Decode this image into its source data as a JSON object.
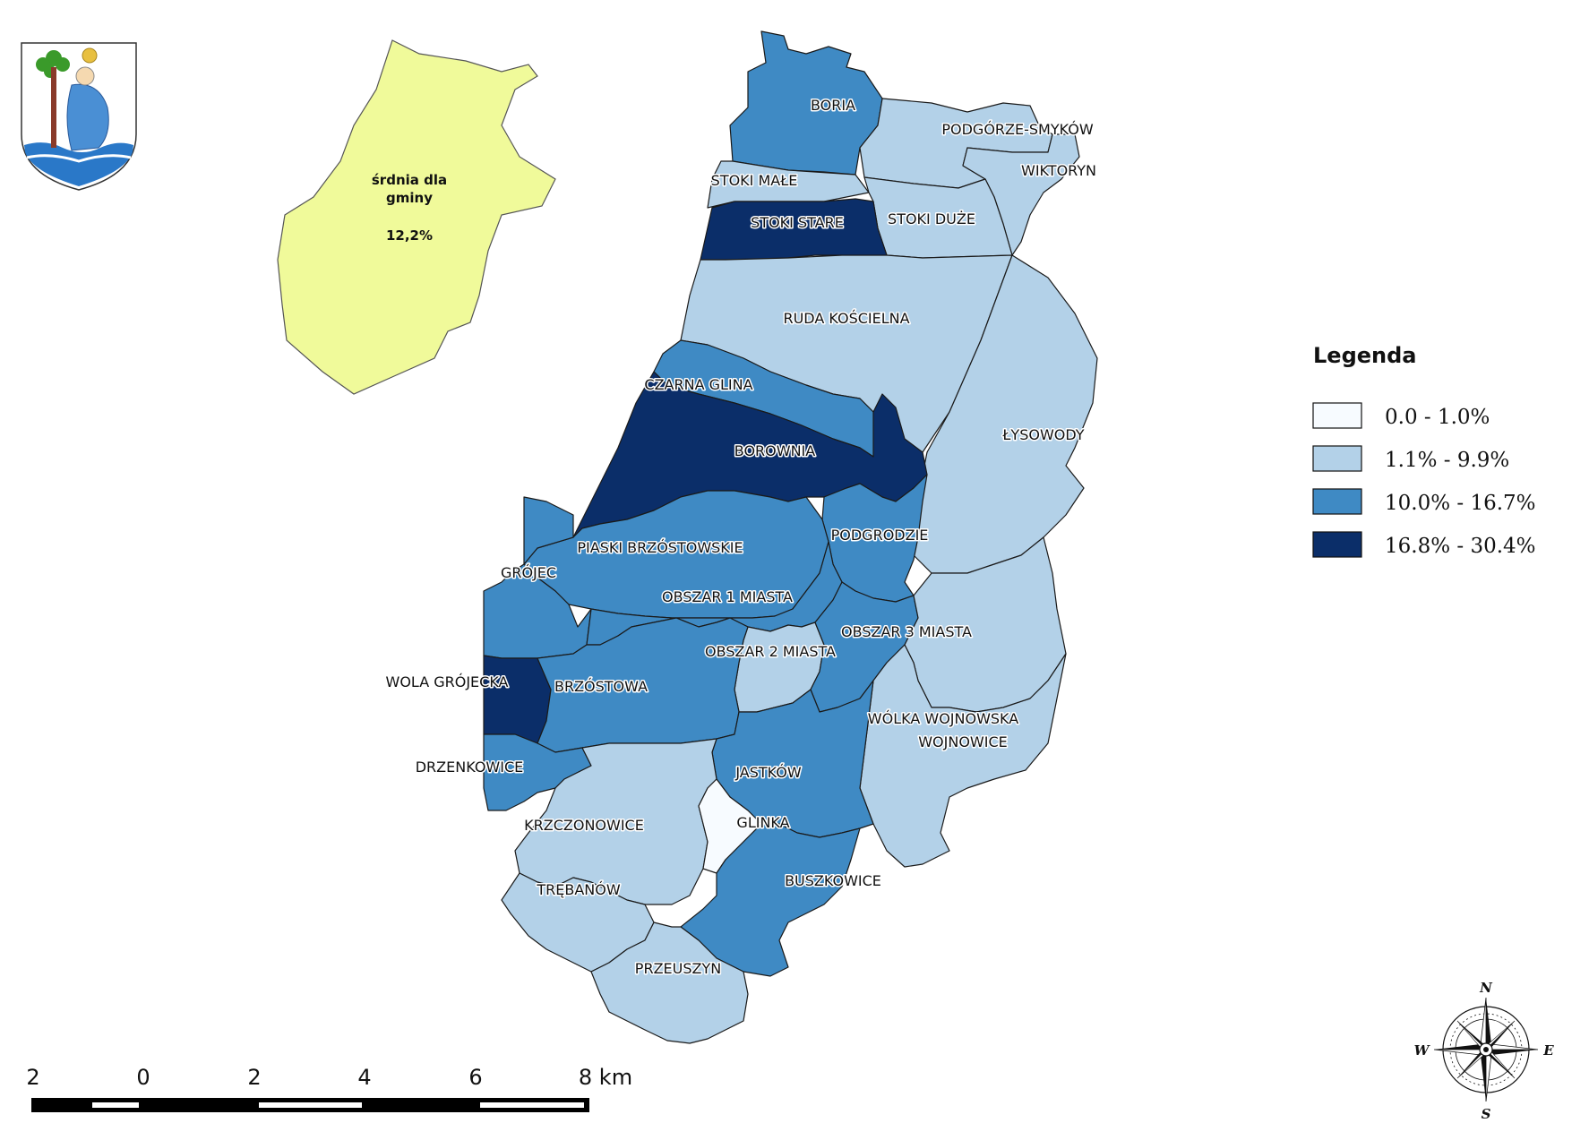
{
  "colors": {
    "class_0": "#f7fbff",
    "class_1": "#b3d1e8",
    "class_2": "#3f8ac4",
    "class_3": "#0b2e69",
    "average_fill": "#f0fa9a"
  },
  "average": {
    "line1": "śrdnia dla",
    "line2": "gminy",
    "value": "12,2%"
  },
  "legend": {
    "title": "Legenda",
    "items": [
      {
        "label": "0.0 - 1.0%",
        "class": "class_0"
      },
      {
        "label": "1.1% - 9.9%",
        "class": "class_1"
      },
      {
        "label": "10.0% - 16.7%",
        "class": "class_2"
      },
      {
        "label": "16.8% - 30.4%",
        "class": "class_3"
      }
    ]
  },
  "regions": {
    "boria": {
      "label": "BORIA",
      "class": "class_2"
    },
    "podgorze_smykow": {
      "label": "PODGÓRZE-SMYKÓW",
      "class": "class_1"
    },
    "wiktoryn": {
      "label": "WIKTORYN",
      "class": "class_1"
    },
    "stoki_male": {
      "label": "STOKI MAŁE",
      "class": "class_1"
    },
    "stoki_duze": {
      "label": "STOKI DUŻE",
      "class": "class_1"
    },
    "stoki_stare": {
      "label": "STOKI STARE",
      "class": "class_3"
    },
    "ruda_koscielna": {
      "label": "RUDA KOŚCIELNA",
      "class": "class_1"
    },
    "lysowody": {
      "label": "ŁYSOWODY",
      "class": "class_1"
    },
    "czarna_glina": {
      "label": "CZARNA GLINA",
      "class": "class_2"
    },
    "borownia": {
      "label": "BOROWNIA",
      "class": "class_3"
    },
    "podgrodzie": {
      "label": "PODGRODZIE",
      "class": "class_2"
    },
    "piaski_brzostowskie": {
      "label": "PIASKI BRZÓSTOWSKIE",
      "class": "class_2"
    },
    "grojec": {
      "label": "GRÓJEC",
      "class": "class_2"
    },
    "obszar1": {
      "label": "OBSZAR 1 MIASTA",
      "class": "class_2"
    },
    "obszar2": {
      "label": "OBSZAR 2  MIASTA",
      "class": "class_1"
    },
    "obszar3": {
      "label": "OBSZAR 3 MIASTA",
      "class": "class_2"
    },
    "wola_grojecka": {
      "label": "WOLA GRÓJECKA",
      "class": "class_3"
    },
    "brzostowa": {
      "label": "BRZÓSTOWA",
      "class": "class_2"
    },
    "wolka_wojnowska": {
      "label": "WÓLKA WOJNOWSKA",
      "class": "class_1"
    },
    "wojnowice": {
      "label": "WOJNOWICE",
      "class": "class_1"
    },
    "drzenkowice": {
      "label": "DRZENKOWICE",
      "class": "class_2"
    },
    "jastkow": {
      "label": "JASTKÓW",
      "class": "class_2"
    },
    "krzczonowice": {
      "label": "KRZCZONOWICE",
      "class": "class_1"
    },
    "glinka": {
      "label": "GLINKA",
      "class": "class_0"
    },
    "buszkowice": {
      "label": "BUSZKOWICE",
      "class": "class_2"
    },
    "trebanow": {
      "label": "TRĘBANÓW",
      "class": "class_1"
    },
    "przeuszyn": {
      "label": "PRZEUSZYN",
      "class": "class_1"
    }
  },
  "scale_bar": {
    "ticks": [
      "2",
      "0",
      "2",
      "4",
      "6",
      "8 km"
    ]
  },
  "compass": {
    "n": "N",
    "s": "S",
    "e": "E",
    "w": "W"
  }
}
